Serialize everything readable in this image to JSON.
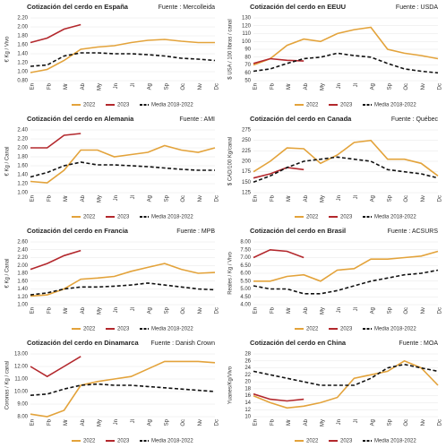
{
  "chart_data": [
    {
      "type": "line",
      "title": "Cotización del cerdo en España",
      "source": "Fuente : Mercolleida",
      "ylabel": "€ Kg / Vivo",
      "categories": [
        "En",
        "Fb",
        "Mr",
        "Ab",
        "My",
        "Jn",
        "Jl",
        "Ag",
        "Sp",
        "Oc",
        "Nv",
        "Dc"
      ],
      "ylim": [
        0.8,
        2.2
      ],
      "yticks": [
        {
          "value": 0.8,
          "label": "0.80"
        },
        {
          "value": 1.0,
          "label": "1.00"
        },
        {
          "value": 1.2,
          "label": "1.20"
        },
        {
          "value": 1.4,
          "label": "1.40"
        },
        {
          "value": 1.6,
          "label": "1.60"
        },
        {
          "value": 1.8,
          "label": "1.80"
        },
        {
          "value": 2.0,
          "label": "2.00"
        },
        {
          "value": 2.2,
          "label": "2.20"
        }
      ],
      "series": [
        {
          "name": "2022",
          "color": "#e3a33b",
          "values": [
            0.98,
            1.05,
            1.25,
            1.5,
            1.55,
            1.58,
            1.65,
            1.7,
            1.72,
            1.68,
            1.65,
            1.65
          ]
        },
        {
          "name": "2023",
          "color": "#b3282d",
          "values": [
            1.65,
            1.75,
            1.95,
            2.05,
            null,
            null,
            null,
            null,
            null,
            null,
            null,
            null
          ]
        },
        {
          "name": "Media 2018-2022",
          "color": "#111111",
          "style": "dashed",
          "values": [
            1.12,
            1.15,
            1.35,
            1.42,
            1.42,
            1.4,
            1.4,
            1.38,
            1.35,
            1.3,
            1.28,
            1.25
          ]
        }
      ]
    },
    {
      "type": "line",
      "title": "Cotización del cerdo en Alemania",
      "source": "Fuente : AMI",
      "ylabel": "€ Kg / Canal",
      "categories": [
        "En",
        "Fb",
        "Mr",
        "Ab",
        "My",
        "Jn",
        "Jl",
        "Ag",
        "Sp",
        "Oc",
        "Nv",
        "Dc"
      ],
      "ylim": [
        1.0,
        2.4
      ],
      "yticks": [
        {
          "value": 1.0,
          "label": "1.00"
        },
        {
          "value": 1.2,
          "label": "1.20"
        },
        {
          "value": 1.4,
          "label": "1.40"
        },
        {
          "value": 1.6,
          "label": "1.60"
        },
        {
          "value": 1.8,
          "label": "1.80"
        },
        {
          "value": 2.0,
          "label": "2.00"
        },
        {
          "value": 2.2,
          "label": "2.20"
        },
        {
          "value": 2.4,
          "label": "2.40"
        }
      ],
      "series": [
        {
          "name": "2022",
          "color": "#e3a33b",
          "values": [
            1.25,
            1.22,
            1.5,
            1.95,
            1.95,
            1.8,
            1.85,
            1.9,
            2.05,
            1.95,
            1.9,
            2.0
          ]
        },
        {
          "name": "2023",
          "color": "#b3282d",
          "values": [
            2.0,
            2.0,
            2.28,
            2.32,
            null,
            null,
            null,
            null,
            null,
            null,
            null,
            null
          ]
        },
        {
          "name": "Media 2018-2022",
          "color": "#111111",
          "style": "dashed",
          "values": [
            1.35,
            1.45,
            1.6,
            1.68,
            1.62,
            1.62,
            1.6,
            1.58,
            1.55,
            1.52,
            1.5,
            1.5
          ]
        }
      ]
    },
    {
      "type": "line",
      "title": "Cotización del cerdo en Francia",
      "source": "Fuente : MPB",
      "ylabel": "€ Kg / Canal",
      "categories": [
        "En",
        "Fb",
        "Mr",
        "Ab",
        "My",
        "Jn",
        "Jl",
        "Ag",
        "Sp",
        "Oc",
        "Nv",
        "Dc"
      ],
      "ylim": [
        1.0,
        2.6
      ],
      "yticks": [
        {
          "value": 1.0,
          "label": "1.00"
        },
        {
          "value": 1.2,
          "label": "1.20"
        },
        {
          "value": 1.4,
          "label": "1.40"
        },
        {
          "value": 1.6,
          "label": "1.60"
        },
        {
          "value": 1.8,
          "label": "1.80"
        },
        {
          "value": 2.0,
          "label": "2.00"
        },
        {
          "value": 2.2,
          "label": "2.20"
        },
        {
          "value": 2.4,
          "label": "2.40"
        },
        {
          "value": 2.6,
          "label": "2.60"
        }
      ],
      "series": [
        {
          "name": "2022",
          "color": "#e3a33b",
          "values": [
            1.22,
            1.25,
            1.4,
            1.65,
            1.68,
            1.72,
            1.85,
            1.95,
            2.05,
            1.9,
            1.8,
            1.82
          ]
        },
        {
          "name": "2023",
          "color": "#b3282d",
          "values": [
            1.9,
            2.05,
            2.25,
            2.38,
            null,
            null,
            null,
            null,
            null,
            null,
            null,
            null
          ]
        },
        {
          "name": "Media 2018-2022",
          "color": "#111111",
          "style": "dashed",
          "values": [
            1.25,
            1.3,
            1.4,
            1.45,
            1.45,
            1.47,
            1.5,
            1.55,
            1.5,
            1.45,
            1.4,
            1.38
          ]
        }
      ]
    },
    {
      "type": "line",
      "title": "Cotización del cerdo en Dinamarca",
      "source": "Fuente : Danish Crown",
      "ylabel": "Coronas / Kg / canal",
      "categories": [
        "En",
        "Fb",
        "Mr",
        "Ab",
        "My",
        "Jn",
        "Jl",
        "Ag",
        "Sp",
        "Oc",
        "Nv",
        "Dc"
      ],
      "ylim": [
        8,
        13
      ],
      "yticks": [
        {
          "value": 8,
          "label": "8.00"
        },
        {
          "value": 9,
          "label": "9.00"
        },
        {
          "value": 10,
          "label": "10.00"
        },
        {
          "value": 11,
          "label": "11.00"
        },
        {
          "value": 12,
          "label": "12.00"
        },
        {
          "value": 13,
          "label": "13.00"
        }
      ],
      "series": [
        {
          "name": "2022",
          "color": "#e3a33b",
          "values": [
            8.2,
            8.0,
            8.5,
            10.5,
            10.8,
            11.0,
            11.2,
            11.8,
            12.4,
            12.4,
            12.4,
            12.3
          ]
        },
        {
          "name": "2023",
          "color": "#b3282d",
          "values": [
            12.0,
            11.2,
            12.0,
            12.8,
            null,
            null,
            null,
            null,
            null,
            null,
            null,
            null
          ]
        },
        {
          "name": "Media 2018-2022",
          "color": "#111111",
          "style": "dashed",
          "values": [
            9.7,
            9.8,
            10.2,
            10.5,
            10.6,
            10.5,
            10.5,
            10.4,
            10.3,
            10.2,
            10.1,
            10.0
          ]
        }
      ]
    },
    {
      "type": "line",
      "title": "Cotización del cerdo en EEUU",
      "source": "Fuente : USDA",
      "ylabel": "$ USA / 100 libras / canal",
      "categories": [
        "En",
        "Fb",
        "Mr",
        "Ab",
        "My",
        "Jn",
        "Jl",
        "Ag",
        "Sp",
        "Oc",
        "Nv",
        "Dc"
      ],
      "ylim": [
        50,
        130
      ],
      "yticks": [
        50,
        60,
        70,
        80,
        90,
        100,
        110,
        120,
        130
      ],
      "series": [
        {
          "name": "2022",
          "color": "#e3a33b",
          "values": [
            70,
            78,
            95,
            103,
            100,
            110,
            115,
            118,
            90,
            85,
            82,
            78
          ]
        },
        {
          "name": "2023",
          "color": "#b3282d",
          "values": [
            72,
            78,
            76,
            75,
            null,
            null,
            null,
            null,
            null,
            null,
            null,
            null
          ]
        },
        {
          "name": "Media 2018-2022",
          "color": "#111111",
          "style": "dashed",
          "values": [
            62,
            65,
            72,
            78,
            80,
            85,
            82,
            80,
            72,
            65,
            62,
            60
          ]
        }
      ]
    },
    {
      "type": "line",
      "title": "Cotización del cerdo en Canada",
      "source": "Fuente : Québec",
      "ylabel": "$ CAD/100 Kg/canal",
      "categories": [
        "En",
        "Fb",
        "Mr",
        "Ab",
        "My",
        "Jn",
        "Jl",
        "Ag",
        "Sp",
        "Oc",
        "Nv",
        "Dc"
      ],
      "ylim": [
        125,
        275
      ],
      "yticks": [
        125,
        150,
        175,
        200,
        225,
        250,
        275
      ],
      "series": [
        {
          "name": "2022",
          "color": "#e3a33b",
          "values": [
            175,
            200,
            232,
            230,
            195,
            215,
            245,
            250,
            205,
            205,
            195,
            165
          ]
        },
        {
          "name": "2023",
          "color": "#b3282d",
          "values": [
            160,
            170,
            185,
            180,
            null,
            null,
            null,
            null,
            null,
            null,
            null,
            null
          ]
        },
        {
          "name": "Media 2018-2022",
          "color": "#111111",
          "style": "dashed",
          "values": [
            150,
            165,
            185,
            200,
            205,
            210,
            205,
            200,
            180,
            175,
            170,
            160
          ]
        }
      ]
    },
    {
      "type": "line",
      "title": "Cotización del cerdo en Brasil",
      "source": "Fuente : ACSURS",
      "ylabel": "Reales / Kg / Vivo",
      "categories": [
        "En",
        "Fb",
        "Mr",
        "Ab",
        "My",
        "Jn",
        "Jl",
        "Ag",
        "Sp",
        "Oc",
        "Nv",
        "Dc"
      ],
      "ylim": [
        4,
        8
      ],
      "yticks": [
        {
          "value": 4,
          "label": "4.00"
        },
        {
          "value": 4.5,
          "label": "4.50"
        },
        {
          "value": 5,
          "label": "5.00"
        },
        {
          "value": 5.5,
          "label": "5.50"
        },
        {
          "value": 6,
          "label": "6.00"
        },
        {
          "value": 6.5,
          "label": "6.50"
        },
        {
          "value": 7,
          "label": "7.00"
        },
        {
          "value": 7.5,
          "label": "7.50"
        },
        {
          "value": 8,
          "label": "8.00"
        }
      ],
      "series": [
        {
          "name": "2022",
          "color": "#e3a33b",
          "values": [
            5.5,
            5.5,
            5.8,
            5.9,
            5.5,
            6.2,
            6.3,
            6.9,
            6.9,
            7.0,
            7.1,
            7.4
          ]
        },
        {
          "name": "2023",
          "color": "#b3282d",
          "values": [
            7.0,
            7.5,
            7.4,
            7.0,
            null,
            null,
            null,
            null,
            null,
            null,
            null,
            null
          ]
        },
        {
          "name": "Media 2018-2022",
          "color": "#111111",
          "style": "dashed",
          "values": [
            5.2,
            5.0,
            5.0,
            4.7,
            4.7,
            4.9,
            5.2,
            5.5,
            5.7,
            5.9,
            6.0,
            6.2
          ]
        }
      ]
    },
    {
      "type": "line",
      "title": "Cotización del cerdo en China",
      "source": "Fuente : MOA",
      "ylabel": "Yuanes/Kg/Vivo",
      "categories": [
        "En",
        "Fb",
        "Mr",
        "Ab",
        "My",
        "Jn",
        "Jl",
        "Ag",
        "Sp",
        "Oc",
        "Nv",
        "Dc"
      ],
      "ylim": [
        10,
        28
      ],
      "yticks": [
        10,
        12,
        14,
        16,
        18,
        20,
        22,
        24,
        26,
        28
      ],
      "series": [
        {
          "name": "2022",
          "color": "#e3a33b",
          "values": [
            16,
            14,
            12.5,
            13,
            14,
            15.5,
            21,
            22,
            23,
            26,
            24,
            19
          ]
        },
        {
          "name": "2023",
          "color": "#b3282d",
          "values": [
            16.5,
            15,
            14.5,
            15,
            null,
            null,
            null,
            null,
            null,
            null,
            null,
            null
          ]
        },
        {
          "name": "Media 2018-2022",
          "color": "#111111",
          "style": "dashed",
          "values": [
            23,
            22,
            21,
            20,
            19,
            19,
            19,
            21,
            24,
            25,
            24,
            23
          ]
        }
      ]
    }
  ]
}
